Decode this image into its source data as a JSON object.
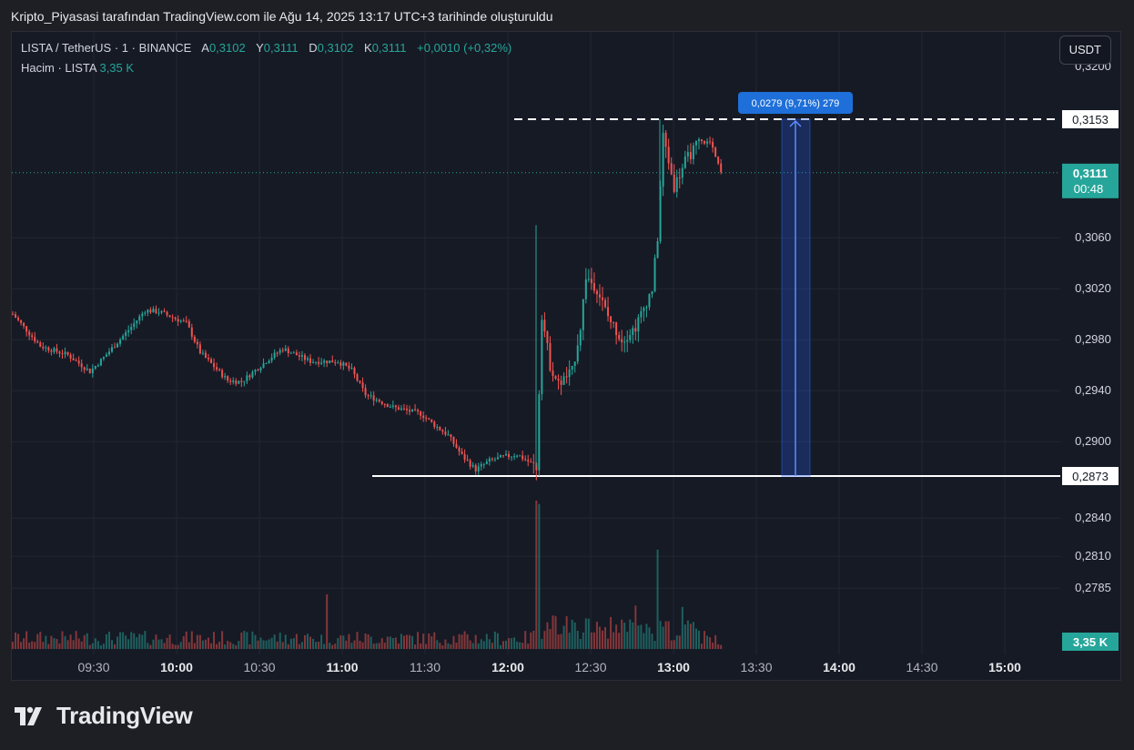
{
  "caption": "Kripto_Piyasasi tarafından TradingView.com ile Ağu 14, 2025 13:17 UTC+3 tarihinde oluşturuldu",
  "legend": {
    "symbol": "LISTA / TetherUS · 1 · BINANCE",
    "open_label": "A",
    "open": "0,3102",
    "high_label": "Y",
    "high": "0,3111",
    "low_label": "D",
    "low": "0,3102",
    "close_label": "K",
    "close": "0,3111",
    "change": "+0,0010 (+0,32%)",
    "volume_title": "Hacim · LISTA",
    "volume_value": "3,35 K"
  },
  "currency_button": "USDT",
  "brand": "TradingView",
  "colors": {
    "up": "#26a69a",
    "down": "#ef5350",
    "measure": "#2962ff",
    "bg": "#161a25"
  },
  "chart_data": {
    "type": "candlestick",
    "x_ticks": [
      "09:30",
      "10:00",
      "10:30",
      "11:00",
      "11:30",
      "12:00",
      "12:30",
      "13:00",
      "13:30",
      "14:00",
      "14:30",
      "15:00"
    ],
    "x_ticks_bold": [
      "10:00",
      "11:00",
      "12:00",
      "13:00",
      "14:00",
      "15:00"
    ],
    "y_ticks": [
      "0,3060",
      "0,3020",
      "0,2980",
      "0,2940",
      "0,2900",
      "0,2840",
      "0,2810",
      "0,2785"
    ],
    "y_ticks_values": [
      0.306,
      0.302,
      0.298,
      0.294,
      0.29,
      0.284,
      0.281,
      0.2785
    ],
    "y_partial_top": "0,3200",
    "horizontal_lines": [
      {
        "label": "0,3153",
        "value": 0.3153,
        "style": "dashed"
      },
      {
        "label": "0,2873",
        "value": 0.2873,
        "style": "solid"
      }
    ],
    "current_price": {
      "label": "0,3111",
      "countdown": "00:48",
      "value": 0.3111
    },
    "volume_badge": "3,35 K",
    "measure": {
      "label": "0,0279 (9,71%) 279",
      "from": 0.2873,
      "to": 0.3153
    },
    "start_time": "09:00",
    "end_time": "13:17",
    "path": [
      [
        0,
        0.3
      ],
      [
        10,
        0.2975
      ],
      [
        20,
        0.2968
      ],
      [
        28,
        0.2955
      ],
      [
        33,
        0.2966
      ],
      [
        43,
        0.299
      ],
      [
        48,
        0.3003
      ],
      [
        53,
        0.3002
      ],
      [
        63,
        0.2993
      ],
      [
        68,
        0.297
      ],
      [
        78,
        0.2948
      ],
      [
        83,
        0.2947
      ],
      [
        93,
        0.2965
      ],
      [
        98,
        0.2973
      ],
      [
        108,
        0.2963
      ],
      [
        118,
        0.2963
      ],
      [
        123,
        0.2956
      ],
      [
        128,
        0.2937
      ],
      [
        138,
        0.2927
      ],
      [
        148,
        0.2922
      ],
      [
        153,
        0.2913
      ],
      [
        158,
        0.2905
      ],
      [
        163,
        0.2889
      ],
      [
        168,
        0.2878
      ],
      [
        173,
        0.2885
      ],
      [
        178,
        0.2888
      ],
      [
        183,
        0.289
      ],
      [
        188,
        0.2883
      ],
      [
        190,
        0.288
      ],
      [
        191,
        0.294
      ],
      [
        192,
        0.3
      ],
      [
        195,
        0.296
      ],
      [
        198,
        0.2945
      ],
      [
        203,
        0.2955
      ],
      [
        206,
        0.299
      ],
      [
        208,
        0.303
      ],
      [
        212,
        0.302
      ],
      [
        216,
        0.2998
      ],
      [
        221,
        0.298
      ],
      [
        226,
        0.299
      ],
      [
        232,
        0.302
      ],
      [
        234,
        0.306
      ],
      [
        236,
        0.314
      ],
      [
        240,
        0.31
      ],
      [
        244,
        0.312
      ],
      [
        249,
        0.3135
      ],
      [
        253,
        0.3135
      ],
      [
        257,
        0.3111
      ]
    ],
    "volume_peaks": [
      {
        "t": 114,
        "v": 15
      },
      {
        "t": 190,
        "v": 39
      },
      {
        "t": 191,
        "v": 35
      },
      {
        "t": 234,
        "v": 23
      },
      {
        "t": 226,
        "v": 10
      },
      {
        "t": 243,
        "v": 8
      }
    ]
  }
}
